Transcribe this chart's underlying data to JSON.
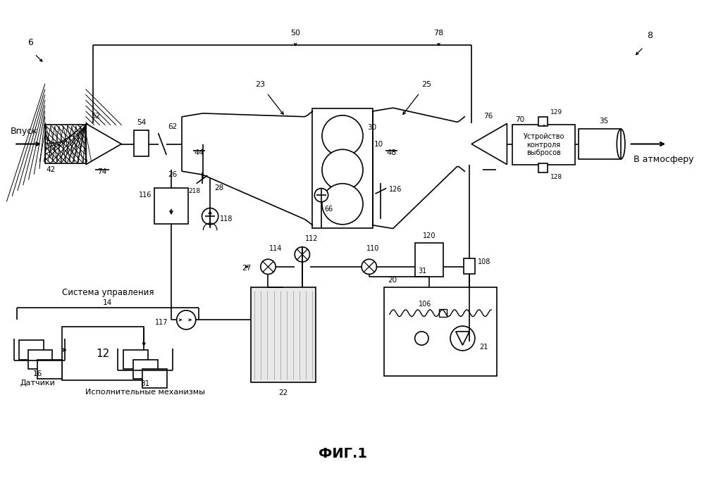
{
  "bg_color": "#ffffff",
  "caption": "ФИГ.1",
  "inlet_label": "Впуск",
  "atmosphere_label": "В атмосферу",
  "control_system_label": "Система управления",
  "sensors_label": "Датчики",
  "actuators_label": "Исполнительные механизмы",
  "emission_line1": "Устройство",
  "emission_line2": "контроля",
  "emission_line3": "выбросов"
}
